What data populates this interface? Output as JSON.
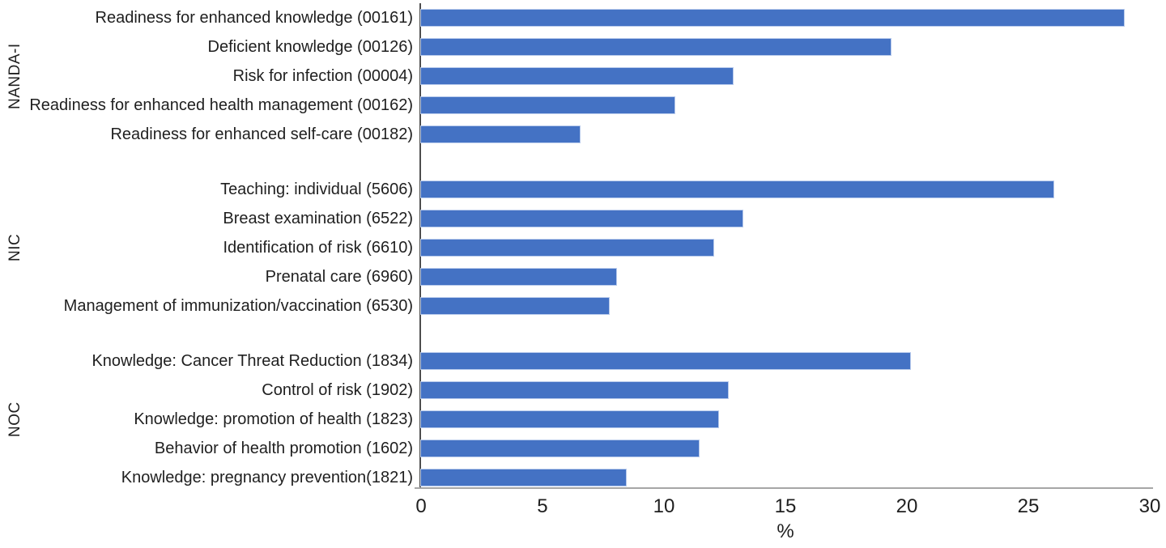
{
  "chart_data": {
    "type": "bar",
    "orientation": "horizontal",
    "title": "",
    "xlabel": "%",
    "ylabel": "",
    "xlim": [
      0,
      30
    ],
    "xticks": [
      0,
      5,
      10,
      15,
      20,
      25,
      30
    ],
    "grid": false,
    "legend": false,
    "bar_color": "#4472C4",
    "bar_border_color": "#b9cbec",
    "groups": [
      {
        "name": "NANDA-I",
        "items": [
          {
            "label": "Readiness for enhanced knowledge (00161)",
            "value": 29.0
          },
          {
            "label": "Deficient knowledge (00126)",
            "value": 19.4
          },
          {
            "label": "Risk for infection (00004)",
            "value": 12.9
          },
          {
            "label": "Readiness for enhanced health management (00162)",
            "value": 10.5
          },
          {
            "label": "Readiness for enhanced self-care (00182)",
            "value": 6.6
          }
        ]
      },
      {
        "name": "NIC",
        "items": [
          {
            "label": "Teaching: individual (5606)",
            "value": 26.1
          },
          {
            "label": "Breast examination (6522)",
            "value": 13.3
          },
          {
            "label": "Identification of risk (6610)",
            "value": 12.1
          },
          {
            "label": "Prenatal care (6960)",
            "value": 8.1
          },
          {
            "label": "Management of immunization/vaccination (6530)",
            "value": 7.8
          }
        ]
      },
      {
        "name": "NOC",
        "items": [
          {
            "label": "Knowledge: Cancer Threat Reduction (1834)",
            "value": 20.2
          },
          {
            "label": "Control of risk (1902)",
            "value": 12.7
          },
          {
            "label": "Knowledge: promotion of health (1823)",
            "value": 12.3
          },
          {
            "label": "Behavior of health promotion (1602)",
            "value": 11.5
          },
          {
            "label": "Knowledge: pregnancy prevention(1821)",
            "value": 8.5
          }
        ]
      }
    ]
  }
}
